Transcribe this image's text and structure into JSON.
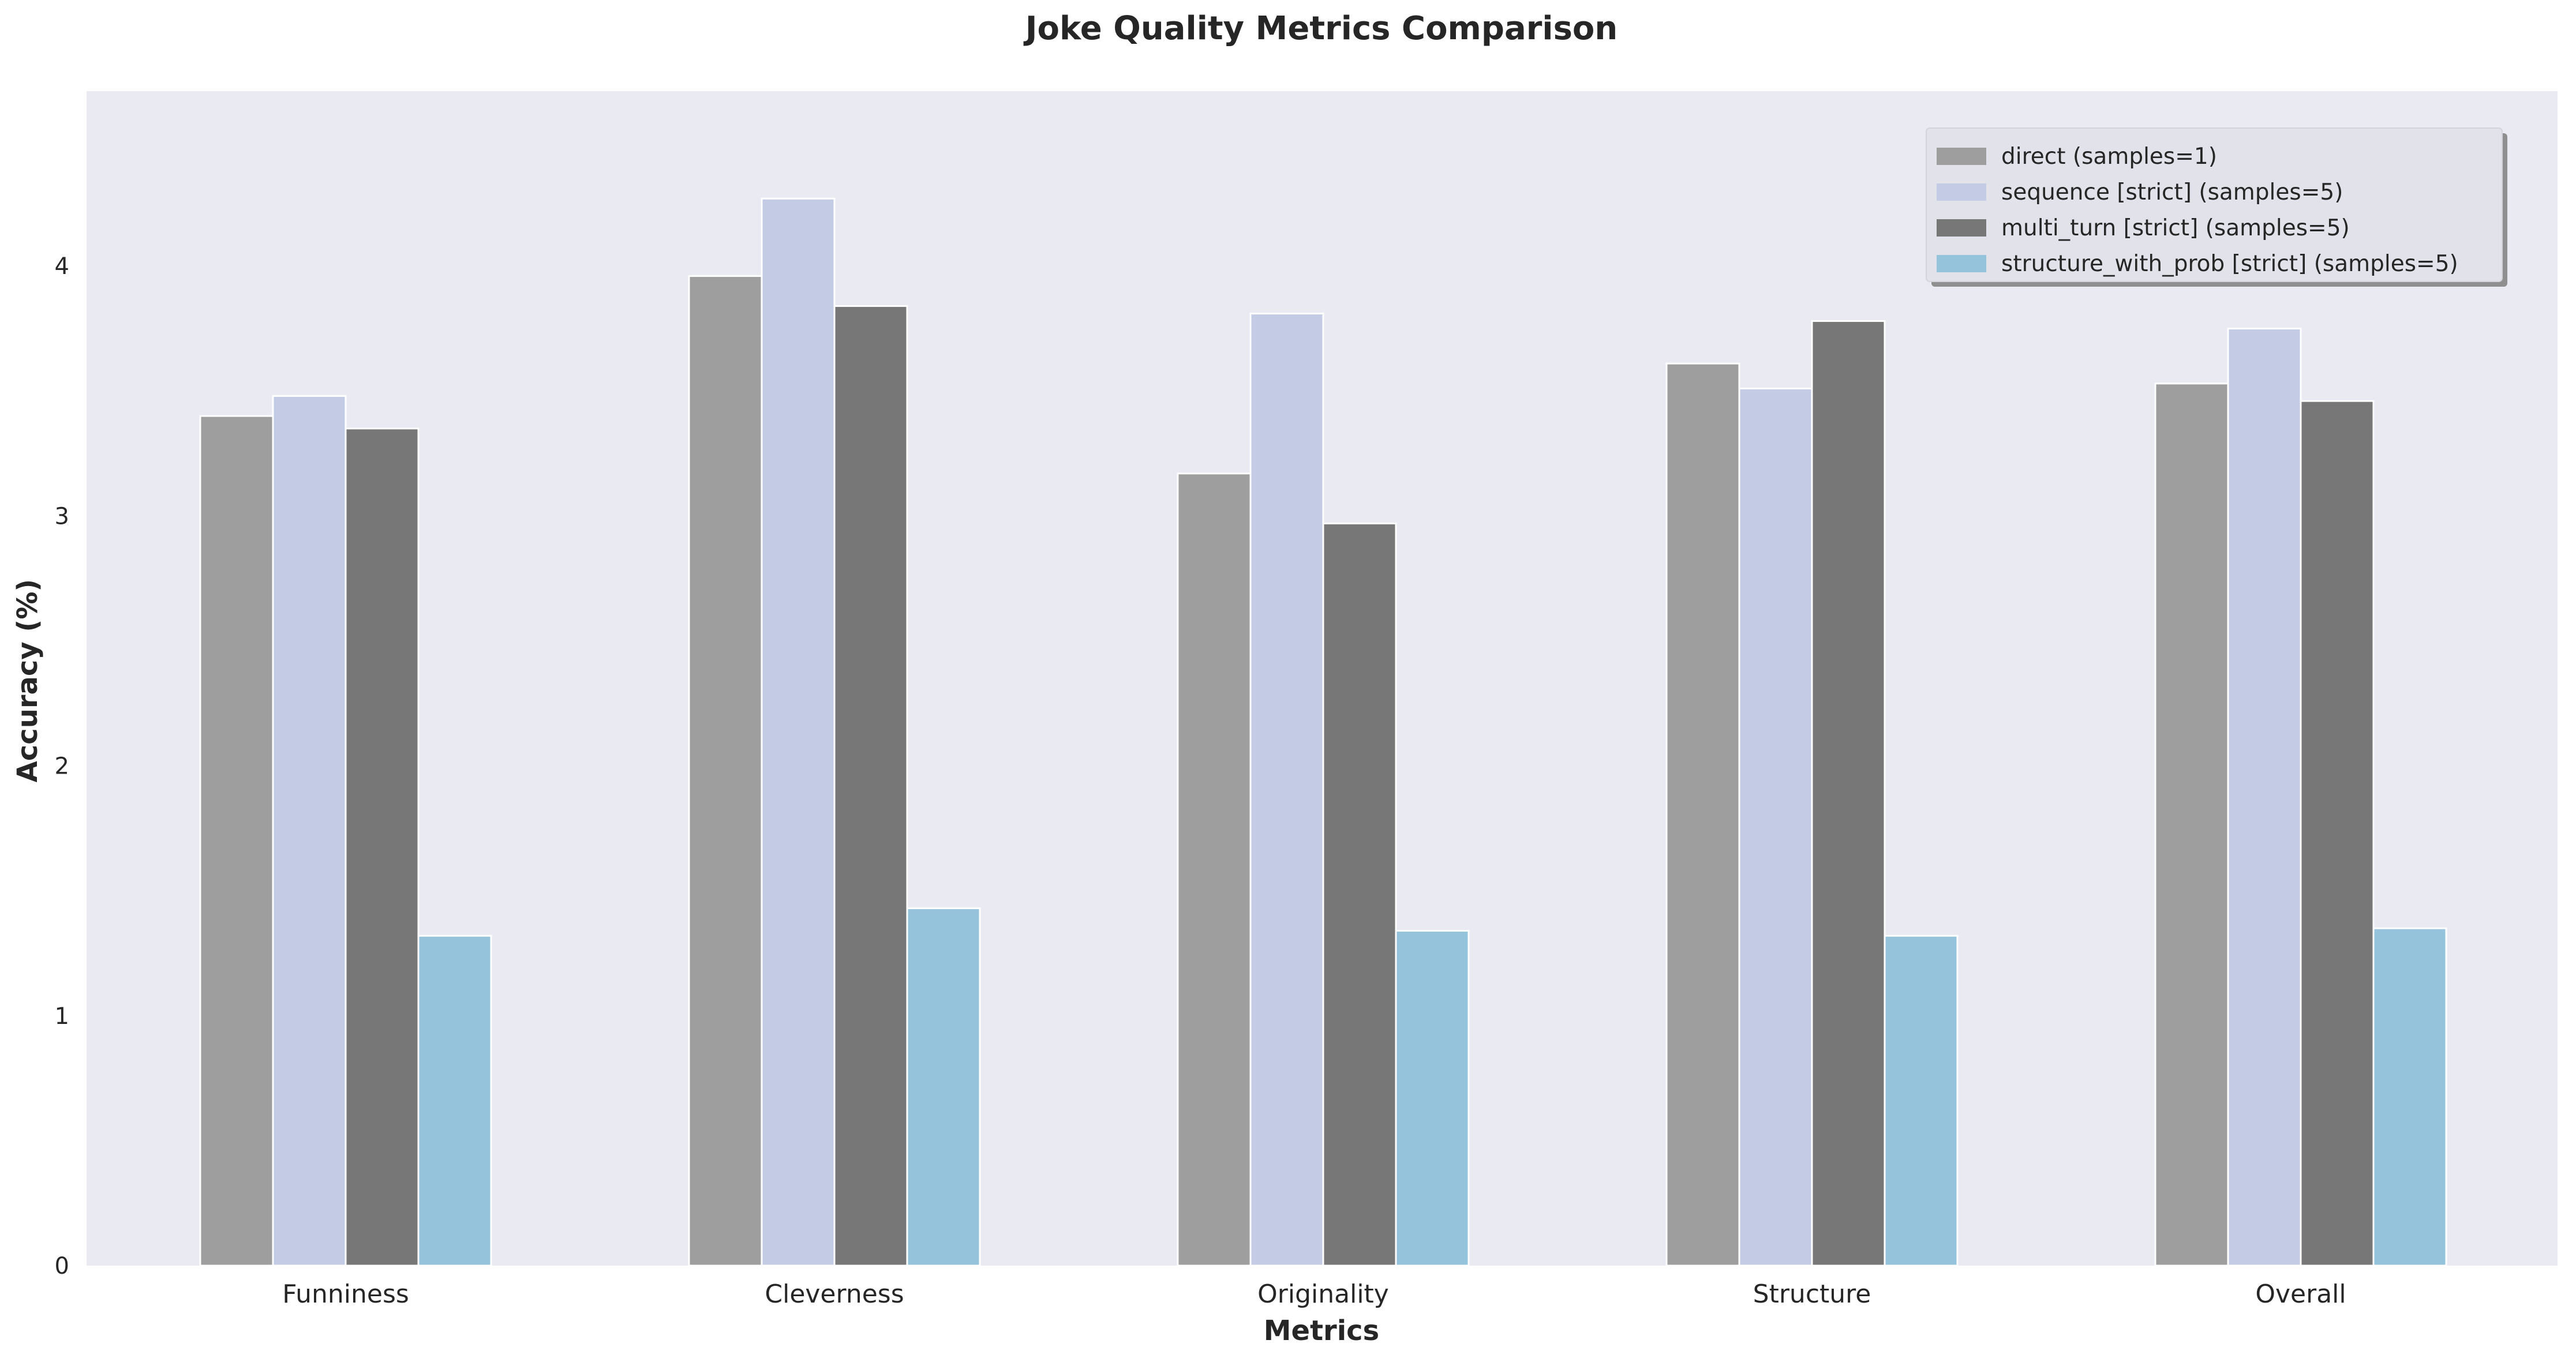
{
  "chart_data": {
    "type": "bar",
    "title": "Joke Quality Metrics Comparison",
    "xlabel": "Metrics",
    "ylabel": "Accuracy (%)",
    "categories": [
      "Funniness",
      "Cleverness",
      "Originality",
      "Structure",
      "Overall"
    ],
    "ylim": [
      0,
      4.7
    ],
    "yticks": [
      0,
      1,
      2,
      3,
      4
    ],
    "grid": false,
    "legend_position": "top-right",
    "background_color": "#eaeaf2",
    "series": [
      {
        "name": "direct (samples=1)",
        "color": "#9e9e9e",
        "values": [
          3.4,
          3.96,
          3.17,
          3.61,
          3.53
        ]
      },
      {
        "name": "sequence [strict] (samples=5)",
        "color": "#c3cce4",
        "values": [
          3.48,
          4.27,
          3.81,
          3.51,
          3.75
        ]
      },
      {
        "name": "multi_turn [strict] (samples=5)",
        "color": "#777777",
        "values": [
          3.35,
          3.84,
          2.97,
          3.78,
          3.46
        ]
      },
      {
        "name": "structure_with_prob [strict] (samples=5)",
        "color": "#94c3db",
        "values": [
          1.32,
          1.43,
          1.34,
          1.32,
          1.35
        ]
      }
    ]
  }
}
